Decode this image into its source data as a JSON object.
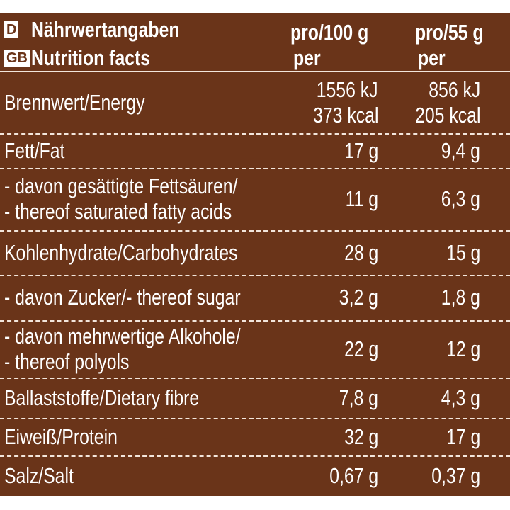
{
  "header": {
    "lang_de": "D",
    "title_de": "Nährwertangaben",
    "lang_en": "GB",
    "title_en": "Nutrition facts",
    "col1": {
      "pro": "pro/100 g",
      "per": "per"
    },
    "col2": {
      "pro": "pro/55 g",
      "per": "per"
    }
  },
  "rows": [
    {
      "label": [
        "Brennwert/Energy"
      ],
      "per_100g": [
        "1556 kJ",
        "373 kcal"
      ],
      "per_55g": [
        "856 kJ",
        "205 kcal"
      ]
    },
    {
      "label": [
        "Fett/Fat"
      ],
      "per_100g": [
        "17 g"
      ],
      "per_55g": [
        "9,4 g"
      ]
    },
    {
      "label": [
        "- davon gesättigte Fettsäuren/",
        "- thereof saturated fatty acids"
      ],
      "per_100g": [
        "11 g"
      ],
      "per_55g": [
        "6,3 g"
      ]
    },
    {
      "label": [
        "Kohlenhydrate/Carbohydrates"
      ],
      "per_100g": [
        "28 g"
      ],
      "per_55g": [
        "15 g"
      ]
    },
    {
      "label": [
        "- davon Zucker/- thereof sugar"
      ],
      "per_100g": [
        "3,2 g"
      ],
      "per_55g": [
        "1,8 g"
      ]
    },
    {
      "label": [
        "- davon mehrwertige Alkohole/",
        "- thereof polyols"
      ],
      "per_100g": [
        "22 g"
      ],
      "per_55g": [
        "12 g"
      ]
    },
    {
      "label": [
        "Ballaststoffe/Dietary fibre"
      ],
      "per_100g": [
        "7,8 g"
      ],
      "per_55g": [
        "4,3 g"
      ]
    },
    {
      "label": [
        "Eiweiß/Protein"
      ],
      "per_100g": [
        "32 g"
      ],
      "per_55g": [
        "17 g"
      ]
    },
    {
      "label": [
        "Salz/Salt"
      ],
      "per_100g": [
        "0,67 g"
      ],
      "per_55g": [
        "0,37 g"
      ]
    }
  ]
}
